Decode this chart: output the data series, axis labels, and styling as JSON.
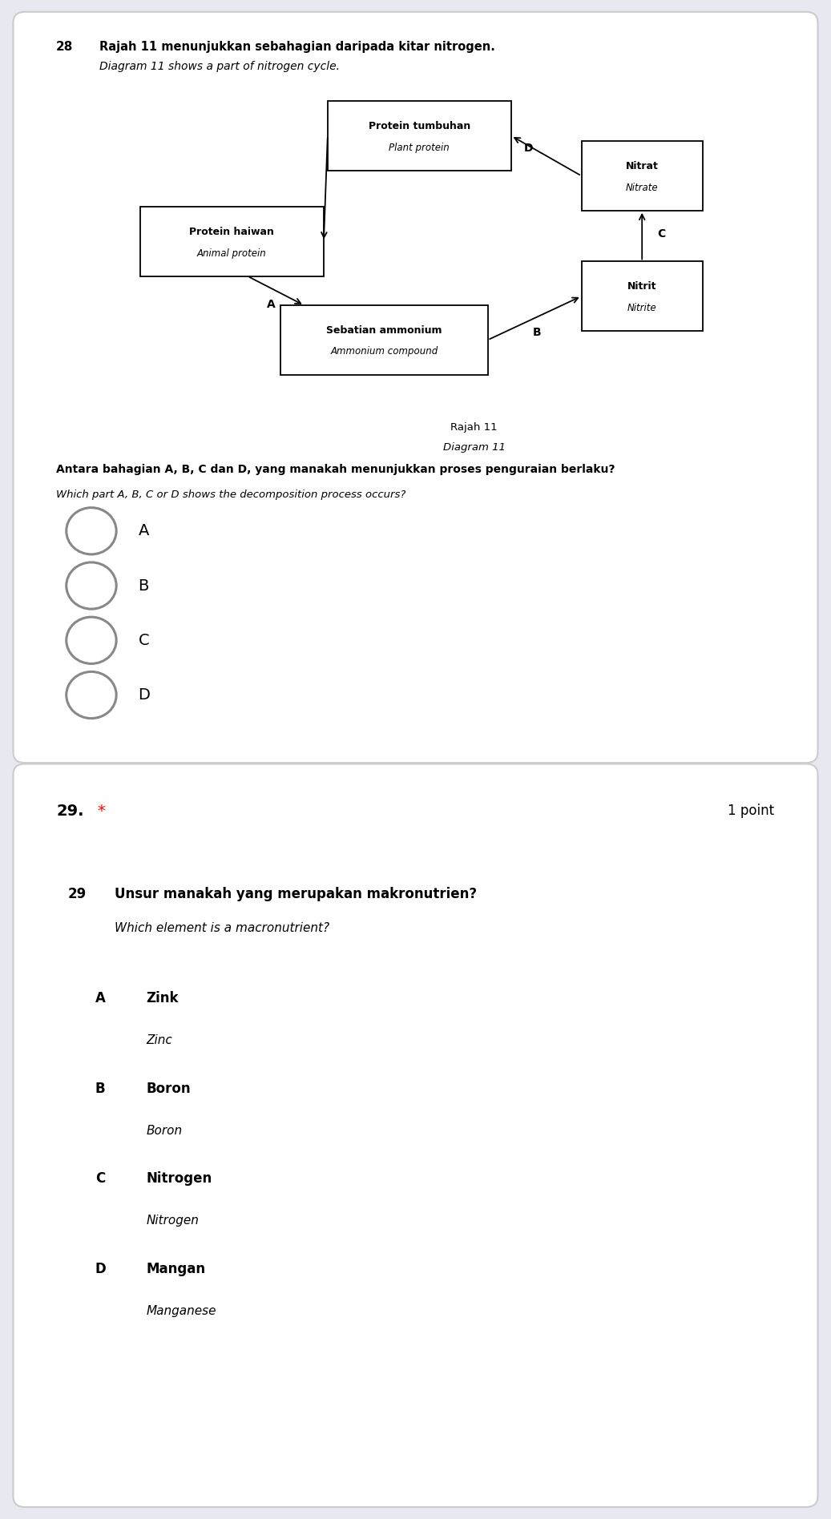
{
  "q28_number": "28",
  "q28_title_bold": "Rajah 11 menunjukkan sebahagian daripada kitar nitrogen.",
  "q28_title_italic": "Diagram 11 shows a part of nitrogen cycle.",
  "diagram_label_1": "Rajah 11",
  "diagram_label_2": "Diagram 11",
  "question_text_bold": "Antara bahagian A, B, C dan D, yang manakah menunjukkan proses penguraian berlaku?",
  "question_text_italic": "Which part A, B, C or D shows the decomposition process occurs?",
  "options_q28": [
    "A",
    "B",
    "C",
    "D"
  ],
  "q29_header": "29. *",
  "q29_points": "1 point",
  "q29_num": "29",
  "q29_question_bold": "Unsur manakah yang merupakan makronutrien?",
  "q29_question_italic": "Which element is a macronutrient?",
  "q29_options": [
    {
      "letter": "A",
      "text_bold": "Zink",
      "text_italic": "Zinc"
    },
    {
      "letter": "B",
      "text_bold": "Boron",
      "text_italic": "Boron"
    },
    {
      "letter": "C",
      "text_bold": "Nitrogen",
      "text_italic": "Nitrogen"
    },
    {
      "letter": "D",
      "text_bold": "Mangan",
      "text_italic": "Manganese"
    }
  ],
  "bg_color": "#e8e8f0",
  "card_bg": "#ffffff",
  "card_border": "#cccccc",
  "radio_color": "#888888",
  "arrow_color": "#000000",
  "box_edge": "#000000"
}
